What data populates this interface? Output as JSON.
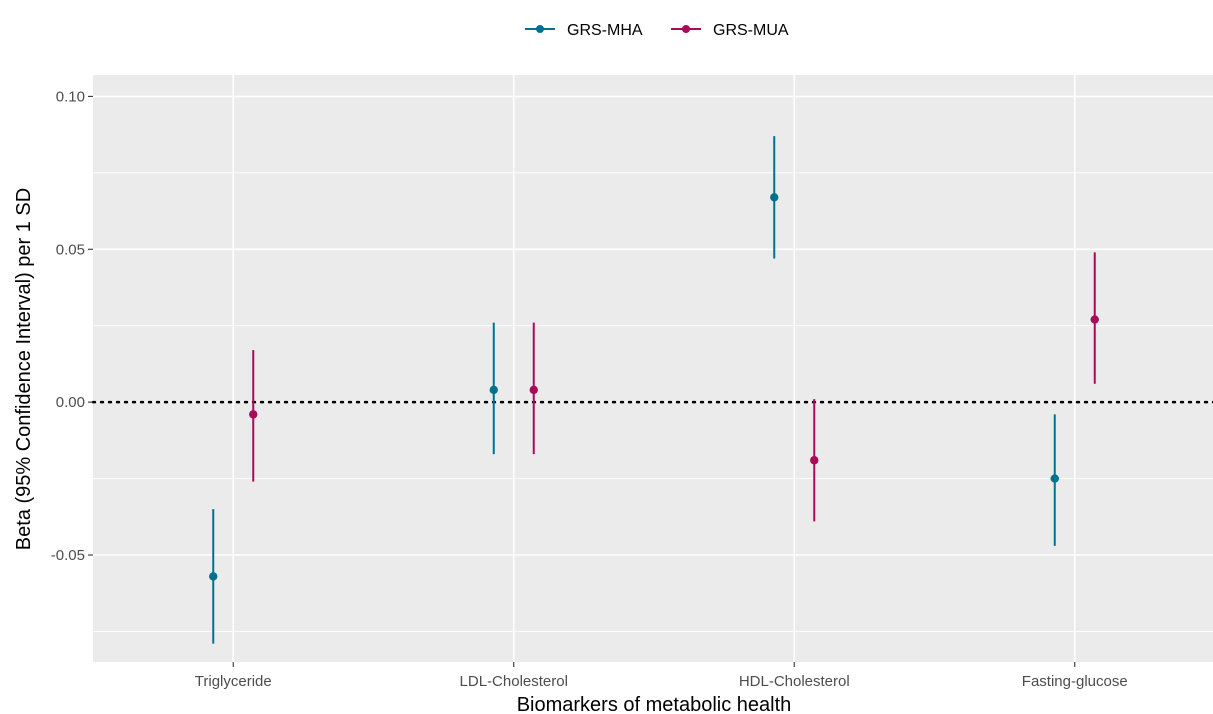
{
  "chart_data": {
    "type": "scatter",
    "subtype": "point-range (dodged)",
    "title": "",
    "xlabel": "Biomarkers of metabolic health",
    "ylabel": "Beta (95% Confidence Interval) per 1 SD",
    "categories": [
      "Triglyceride",
      "LDL-Cholesterol",
      "HDL-Cholesterol",
      "Fasting-glucose"
    ],
    "ylim": [
      -0.085,
      0.107
    ],
    "yticks": [
      -0.05,
      0.0,
      0.05,
      0.1
    ],
    "ytick_labels": [
      "-0.05",
      "0.00",
      "0.05",
      "0.10"
    ],
    "reference_line": {
      "y": 0.0,
      "style": "dotted"
    },
    "grid": true,
    "legend": {
      "position": "top"
    },
    "series": [
      {
        "name": "GRS-MHA",
        "color": "#00728F",
        "values": [
          -0.057,
          0.004,
          0.067,
          -0.025
        ],
        "lower": [
          -0.079,
          -0.017,
          0.047,
          -0.047
        ],
        "upper": [
          -0.035,
          0.026,
          0.087,
          -0.004
        ]
      },
      {
        "name": "GRS-MUA",
        "color": "#A90A5A",
        "values": [
          -0.004,
          0.004,
          -0.019,
          0.027
        ],
        "lower": [
          -0.026,
          -0.017,
          -0.039,
          0.006
        ],
        "upper": [
          0.017,
          0.026,
          0.001,
          0.049
        ]
      }
    ]
  }
}
